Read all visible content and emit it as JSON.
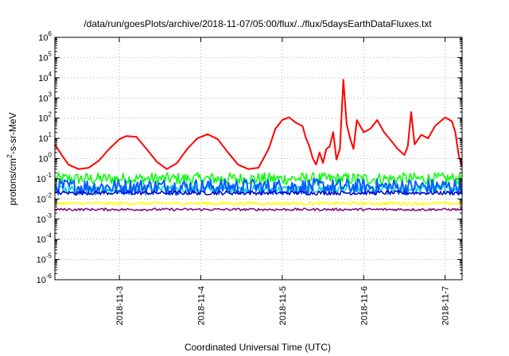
{
  "chart_data": {
    "type": "line",
    "title": "/data/run/goesPlots/archive/2018-11-07/05:00/flux/../flux/5daysEarthDataFluxes.txt",
    "xlabel": "Coordinated Universal Time (UTC)",
    "ylabel_parts": {
      "base": "protons/cm",
      "sup": "2",
      "rest": "-s-sr-MeV"
    },
    "y_scale": "log",
    "ylim": [
      1e-06,
      1000000.0
    ],
    "y_ticks": [
      {
        "value": 1e-06,
        "base": "10",
        "exp": "-6"
      },
      {
        "value": 1e-05,
        "base": "10",
        "exp": "-5"
      },
      {
        "value": 0.0001,
        "base": "10",
        "exp": "-4"
      },
      {
        "value": 0.001,
        "base": "10",
        "exp": "-3"
      },
      {
        "value": 0.01,
        "base": "10",
        "exp": "-2"
      },
      {
        "value": 0.1,
        "base": "10",
        "exp": "-1"
      },
      {
        "value": 1,
        "base": "10",
        "exp": "0"
      },
      {
        "value": 10,
        "base": "10",
        "exp": "1"
      },
      {
        "value": 100,
        "base": "10",
        "exp": "2"
      },
      {
        "value": 1000,
        "base": "10",
        "exp": "3"
      },
      {
        "value": 10000,
        "base": "10",
        "exp": "4"
      },
      {
        "value": 100000,
        "base": "10",
        "exp": "5"
      },
      {
        "value": 1000000,
        "base": "10",
        "exp": "6"
      }
    ],
    "xlim": [
      "2018-11-02 05:00",
      "2018-11-07 05:00"
    ],
    "x_ticks": [
      {
        "value": "2018-11-03 00:00",
        "label": "2018-11-3"
      },
      {
        "value": "2018-11-04 00:00",
        "label": "2018-11-4"
      },
      {
        "value": "2018-11-05 00:00",
        "label": "2018-11-5"
      },
      {
        "value": "2018-11-06 00:00",
        "label": "2018-11-6"
      },
      {
        "value": "2018-11-07 00:00",
        "label": "2018-11-7"
      }
    ],
    "grid": true,
    "series": [
      {
        "color": "#ff0000",
        "points": [
          [
            "2018-11-02 05:00",
            5
          ],
          [
            "2018-11-02 07:00",
            1.5
          ],
          [
            "2018-11-02 09:00",
            0.5
          ],
          [
            "2018-11-02 12:00",
            0.3
          ],
          [
            "2018-11-02 15:00",
            0.35
          ],
          [
            "2018-11-02 18:00",
            0.8
          ],
          [
            "2018-11-02 21:00",
            3
          ],
          [
            "2018-11-03 00:00",
            9
          ],
          [
            "2018-11-03 02:00",
            13
          ],
          [
            "2018-11-03 05:00",
            12
          ],
          [
            "2018-11-03 08:00",
            3
          ],
          [
            "2018-11-03 11:00",
            0.7
          ],
          [
            "2018-11-03 14:00",
            0.3
          ],
          [
            "2018-11-03 17:00",
            0.6
          ],
          [
            "2018-11-03 20:00",
            3
          ],
          [
            "2018-11-03 23:00",
            10
          ],
          [
            "2018-11-04 02:00",
            16
          ],
          [
            "2018-11-04 05:00",
            9
          ],
          [
            "2018-11-04 08:00",
            2
          ],
          [
            "2018-11-04 11:00",
            0.5
          ],
          [
            "2018-11-04 14:00",
            0.3
          ],
          [
            "2018-11-04 17:00",
            0.35
          ],
          [
            "2018-11-04 20:00",
            3
          ],
          [
            "2018-11-04 22:00",
            30
          ],
          [
            "2018-11-05 00:00",
            80
          ],
          [
            "2018-11-05 02:00",
            110
          ],
          [
            "2018-11-05 04:00",
            60
          ],
          [
            "2018-11-05 06:00",
            40
          ],
          [
            "2018-11-05 07:00",
            10
          ],
          [
            "2018-11-05 08:00",
            4
          ],
          [
            "2018-11-05 09:00",
            1
          ],
          [
            "2018-11-05 10:00",
            0.5
          ],
          [
            "2018-11-05 11:00",
            2
          ],
          [
            "2018-11-05 12:00",
            0.6
          ],
          [
            "2018-11-05 13:00",
            3
          ],
          [
            "2018-11-05 14:00",
            4
          ],
          [
            "2018-11-05 15:00",
            20
          ],
          [
            "2018-11-05 16:00",
            0.9
          ],
          [
            "2018-11-05 17:00",
            3
          ],
          [
            "2018-11-05 18:00",
            8000
          ],
          [
            "2018-11-05 19:00",
            50
          ],
          [
            "2018-11-05 20:00",
            10
          ],
          [
            "2018-11-05 21:00",
            3
          ],
          [
            "2018-11-05 22:00",
            80
          ],
          [
            "2018-11-06 00:00",
            20
          ],
          [
            "2018-11-06 02:00",
            30
          ],
          [
            "2018-11-06 04:00",
            80
          ],
          [
            "2018-11-06 06:00",
            20
          ],
          [
            "2018-11-06 08:00",
            8
          ],
          [
            "2018-11-06 10:00",
            3
          ],
          [
            "2018-11-06 12:00",
            1.5
          ],
          [
            "2018-11-06 13:00",
            4
          ],
          [
            "2018-11-06 14:00",
            200
          ],
          [
            "2018-11-06 15:00",
            5
          ],
          [
            "2018-11-06 17:00",
            15
          ],
          [
            "2018-11-06 19:00",
            10
          ],
          [
            "2018-11-06 21:00",
            40
          ],
          [
            "2018-11-07 00:00",
            110
          ],
          [
            "2018-11-07 02:00",
            70
          ],
          [
            "2018-11-07 03:00",
            20
          ],
          [
            "2018-11-07 04:00",
            1.5
          ],
          [
            "2018-11-07 05:00",
            0.4
          ]
        ]
      },
      {
        "color": "#00ff00",
        "level": 0.1,
        "spread": 0.3
      },
      {
        "color": "#00d0d0",
        "level": 0.03,
        "spread": 0.2
      },
      {
        "color": "#0060ff",
        "level": 0.04,
        "spread": 0.4
      },
      {
        "color": "#0000d0",
        "level": 0.02,
        "spread": 0.1
      },
      {
        "color": "#ffff00",
        "level": 0.006,
        "spread": 0.08
      },
      {
        "color": "#800080",
        "level": 0.003,
        "spread": 0.06
      }
    ]
  }
}
